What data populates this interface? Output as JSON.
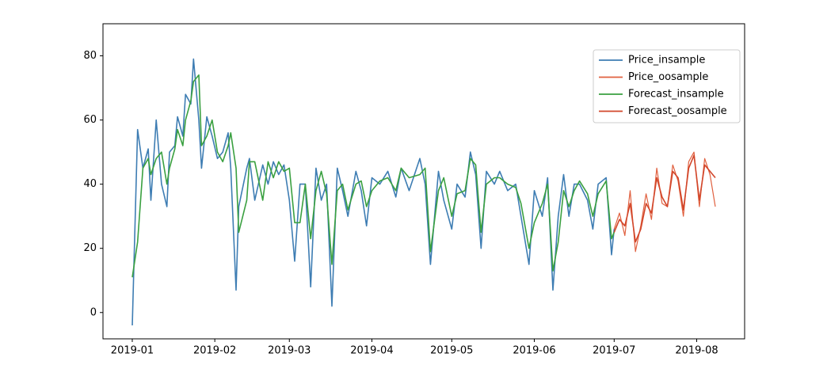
{
  "chart_data": {
    "type": "line",
    "xlim": [
      -11,
      230
    ],
    "xticks": [
      {
        "value": 0,
        "label": "2019-01"
      },
      {
        "value": 31,
        "label": "2019-02"
      },
      {
        "value": 59,
        "label": "2019-03"
      },
      {
        "value": 90,
        "label": "2019-04"
      },
      {
        "value": 120,
        "label": "2019-05"
      },
      {
        "value": 151,
        "label": "2019-06"
      },
      {
        "value": 181,
        "label": "2019-07"
      },
      {
        "value": 212,
        "label": "2019-08"
      }
    ],
    "ylim": [
      -8.2,
      90
    ],
    "yticks": [
      0,
      20,
      40,
      60,
      80
    ],
    "legend": "upper right",
    "series": [
      {
        "name": "Price_insample",
        "color": "#3e7db3",
        "x": [
          0,
          2,
          4,
          6,
          7,
          9,
          11,
          13,
          14,
          16,
          17,
          19,
          20,
          22,
          23,
          25,
          26,
          28,
          30,
          32,
          34,
          36,
          37,
          39,
          40,
          43,
          44,
          46,
          49,
          51,
          53,
          55,
          57,
          59,
          61,
          63,
          65,
          67,
          69,
          71,
          73,
          75,
          77,
          79,
          81,
          84,
          86,
          88,
          90,
          93,
          96,
          99,
          101,
          104,
          108,
          110,
          112,
          115,
          117,
          120,
          122,
          125,
          127,
          129,
          131,
          133,
          136,
          138,
          141,
          144,
          146,
          149,
          151,
          154,
          156,
          158,
          160,
          162,
          164,
          166,
          168,
          171,
          173,
          175,
          178,
          180,
          181
        ],
        "values": [
          -4,
          57,
          45,
          51,
          35,
          60,
          40,
          33,
          50,
          52,
          61,
          55,
          68,
          65,
          79,
          60,
          45,
          61,
          55,
          48,
          50,
          56,
          45,
          7,
          33,
          45,
          48,
          35,
          46,
          40,
          47,
          43,
          46,
          35,
          16,
          40,
          40,
          8,
          45,
          35,
          40,
          2,
          45,
          38,
          30,
          44,
          38,
          27,
          42,
          40,
          44,
          36,
          45,
          38,
          48,
          40,
          15,
          44,
          35,
          26,
          40,
          36,
          50,
          43,
          20,
          44,
          40,
          44,
          38,
          40,
          30,
          15,
          38,
          30,
          42,
          7,
          30,
          43,
          30,
          40,
          40,
          35,
          26,
          40,
          42,
          18,
          26
        ]
      },
      {
        "name": "Price_oosample",
        "color": "#e0603f",
        "x": [
          181,
          183,
          185,
          187,
          189,
          191,
          193,
          195,
          197,
          199,
          201,
          203,
          205,
          207,
          209,
          211,
          213,
          215,
          217,
          219
        ],
        "values": [
          26,
          31,
          24,
          38,
          19,
          27,
          37,
          29,
          45,
          34,
          33,
          46,
          41,
          30,
          47,
          50,
          33,
          48,
          43,
          33
        ]
      },
      {
        "name": "Forecast_insample",
        "color": "#3aa040",
        "x": [
          0,
          2,
          4,
          6,
          7,
          9,
          11,
          13,
          14,
          16,
          17,
          19,
          20,
          22,
          23,
          25,
          26,
          28,
          30,
          32,
          34,
          36,
          37,
          39,
          40,
          43,
          44,
          46,
          49,
          51,
          53,
          55,
          57,
          59,
          61,
          63,
          65,
          67,
          69,
          71,
          73,
          75,
          77,
          79,
          81,
          84,
          86,
          88,
          90,
          93,
          96,
          99,
          101,
          104,
          108,
          110,
          112,
          115,
          117,
          120,
          122,
          125,
          127,
          129,
          131,
          133,
          136,
          138,
          141,
          144,
          146,
          149,
          151,
          154,
          156,
          158,
          160,
          162,
          164,
          166,
          168,
          171,
          173,
          175,
          178,
          180,
          181
        ],
        "values": [
          11,
          22,
          45,
          48,
          43,
          48,
          50,
          40,
          45,
          51,
          57,
          52,
          60,
          66,
          72,
          74,
          52,
          55,
          60,
          50,
          47,
          52,
          56,
          45,
          25,
          35,
          47,
          47,
          35,
          47,
          42,
          47,
          44,
          45,
          28,
          28,
          40,
          23,
          38,
          44,
          37,
          15,
          38,
          40,
          32,
          40,
          41,
          33,
          38,
          41,
          42,
          38,
          45,
          42,
          43,
          45,
          19,
          38,
          42,
          30,
          37,
          38,
          48,
          46,
          25,
          40,
          42,
          42,
          40,
          39,
          34,
          20,
          28,
          34,
          40,
          13,
          22,
          38,
          33,
          38,
          41,
          37,
          30,
          37,
          41,
          23,
          25
        ]
      },
      {
        "name": "Forecast_oosample",
        "color": "#d2462a",
        "x": [
          181,
          183,
          185,
          187,
          189,
          191,
          193,
          195,
          197,
          199,
          201,
          203,
          205,
          207,
          209,
          211,
          213,
          215,
          217,
          219
        ],
        "values": [
          25,
          29,
          27,
          34,
          22,
          26,
          34,
          31,
          42,
          36,
          33,
          44,
          42,
          32,
          45,
          49,
          35,
          46,
          44,
          42
        ]
      }
    ]
  }
}
